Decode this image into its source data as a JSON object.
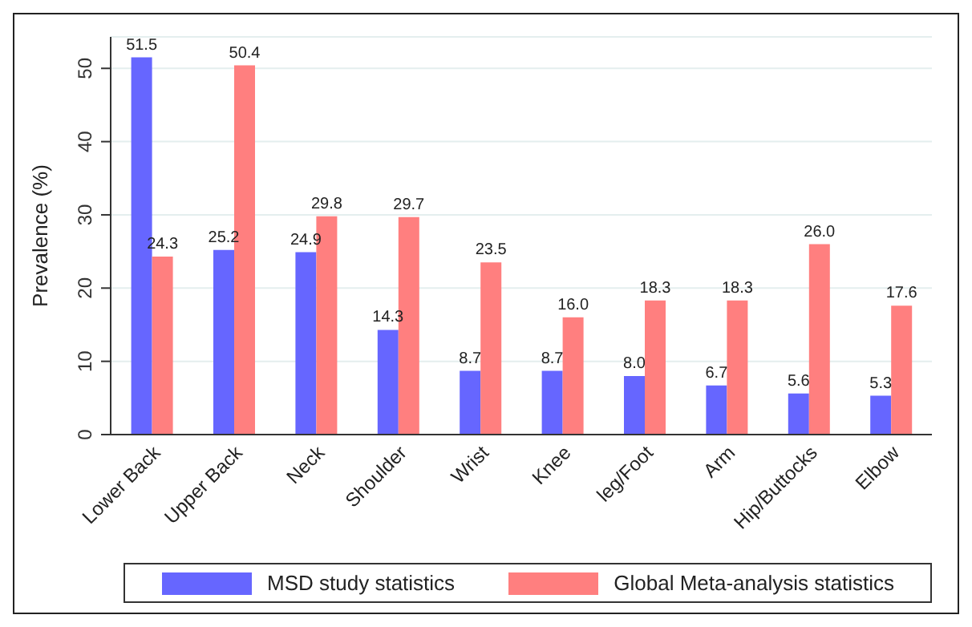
{
  "chart_data": {
    "type": "bar",
    "ylabel": "Prevalence (%)",
    "categories": [
      "Lower Back",
      "Upper Back",
      "Neck",
      "Shoulder",
      "Wrist",
      "Knee",
      "leg/Foot",
      "Arm",
      "Hip/Buttocks",
      "Elbow"
    ],
    "series": [
      {
        "name": "MSD study statistics",
        "color": "#6666ff",
        "values": [
          51.5,
          25.2,
          24.9,
          14.3,
          8.7,
          8.7,
          8.0,
          6.7,
          5.6,
          5.3
        ],
        "value_labels": [
          "51.5",
          "25.2",
          "24.9",
          "14.3",
          "8.7",
          "8.7",
          "8.0",
          "6.7",
          "5.6",
          "5.3"
        ]
      },
      {
        "name": "Global Meta-analysis statistics",
        "color": "#ff7f7f",
        "values": [
          24.3,
          50.4,
          29.8,
          29.7,
          23.5,
          16.0,
          18.3,
          18.3,
          26.0,
          17.6
        ],
        "value_labels": [
          "24.3",
          "50.4",
          "29.8",
          "29.7",
          "23.5",
          "16.0",
          "18.3",
          "18.3",
          "26.0",
          "17.6"
        ]
      }
    ],
    "ylim": [
      0,
      54.3
    ],
    "yticks": [
      0,
      10,
      20,
      30,
      40,
      50
    ],
    "grid": "y",
    "legend": "bottom"
  }
}
